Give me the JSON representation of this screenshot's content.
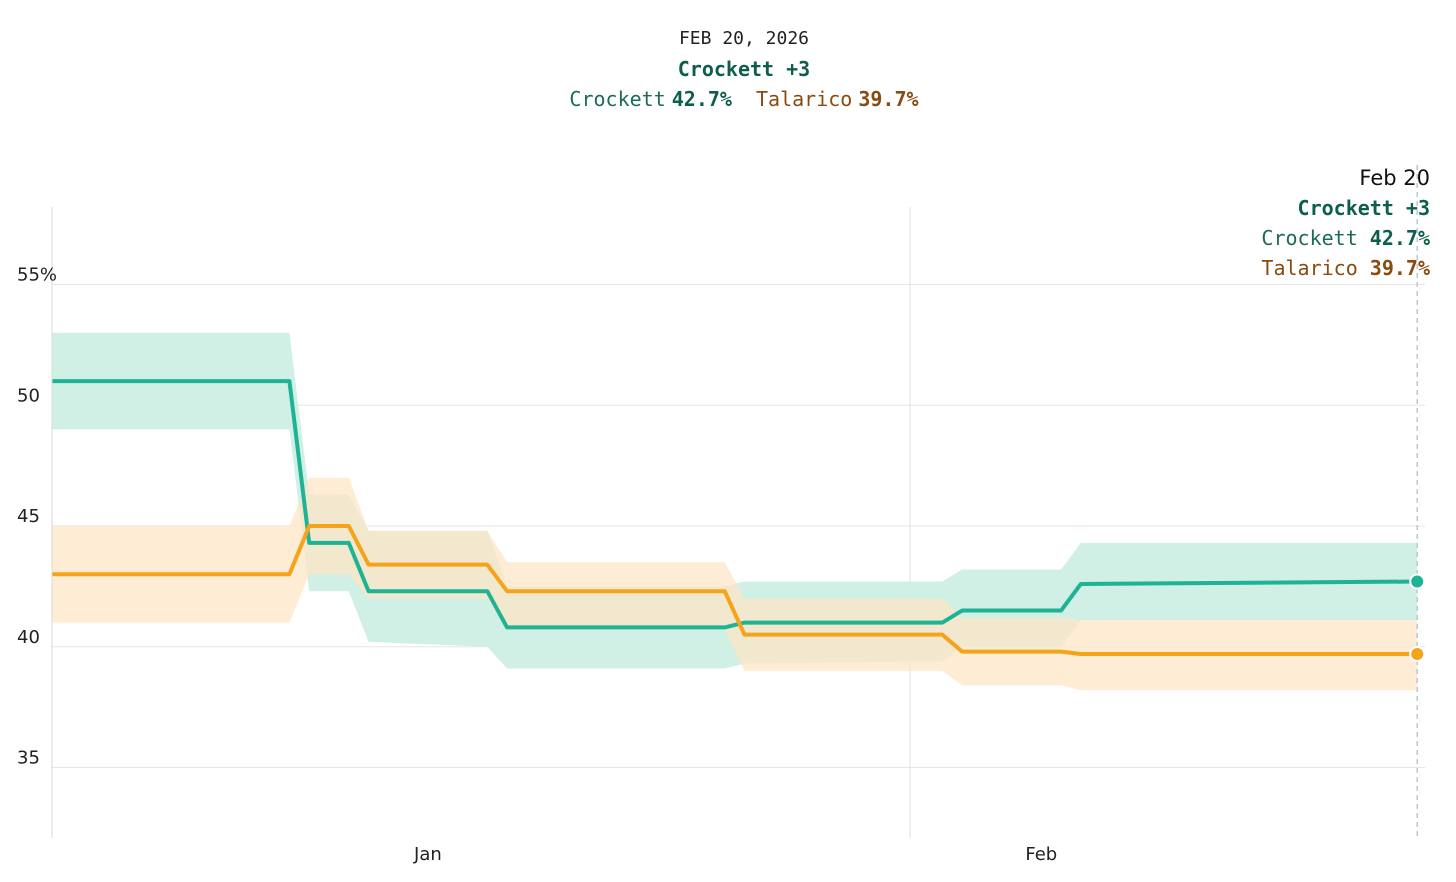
{
  "header": {
    "date": "FEB 20, 2026",
    "lead": "Crockett +3",
    "crockett_label": "Crockett",
    "crockett_value": "42.7%",
    "talarico_label": "Talarico",
    "talarico_value": "39.7%"
  },
  "tooltip": {
    "date": "Feb 20",
    "lead": "Crockett +3",
    "crockett_label": "Crockett",
    "crockett_value": "42.7%",
    "talarico_label": "Talarico",
    "talarico_value": "39.7%"
  },
  "colors": {
    "crockett_line": "#1db394",
    "crockett_band": "#cdeee4",
    "talarico_line": "#f5a31a",
    "talarico_band": "#fde6c6",
    "grid": "#e6e6e6"
  },
  "chart_data": {
    "type": "line",
    "ylim": [
      32,
      58
    ],
    "y_ticks": [
      {
        "value": 55,
        "label": "55%"
      },
      {
        "value": 50,
        "label": "50"
      },
      {
        "value": 45,
        "label": "45"
      },
      {
        "value": 40,
        "label": "40"
      },
      {
        "value": 35,
        "label": "35"
      }
    ],
    "x_ticks": [
      {
        "date": "2026-01-01",
        "label": "Jan"
      },
      {
        "date": "2026-02-01",
        "label": "Feb"
      }
    ],
    "xlim": [
      "2025-12-13",
      "2026-02-21"
    ],
    "series": [
      {
        "name": "Crockett",
        "points": [
          {
            "date": "2025-12-13",
            "value": 51.0,
            "low": 49.0,
            "high": 53.0
          },
          {
            "date": "2025-12-25",
            "value": 51.0,
            "low": 49.0,
            "high": 53.0
          },
          {
            "date": "2025-12-26",
            "value": 44.3,
            "low": 42.3,
            "high": 46.3
          },
          {
            "date": "2025-12-28",
            "value": 44.3,
            "low": 42.3,
            "high": 46.3
          },
          {
            "date": "2025-12-29",
            "value": 42.3,
            "low": 40.2,
            "high": 44.8
          },
          {
            "date": "2026-01-04",
            "value": 42.3,
            "low": 40.0,
            "high": 44.8
          },
          {
            "date": "2026-01-05",
            "value": 40.8,
            "low": 39.1,
            "high": 42.5
          },
          {
            "date": "2026-01-16",
            "value": 40.8,
            "low": 39.1,
            "high": 42.5
          },
          {
            "date": "2026-01-17",
            "value": 41.0,
            "low": 39.3,
            "high": 42.7
          },
          {
            "date": "2026-01-27",
            "value": 41.0,
            "low": 39.4,
            "high": 42.7
          },
          {
            "date": "2026-01-28",
            "value": 41.5,
            "low": 40.0,
            "high": 43.2
          },
          {
            "date": "2026-02-02",
            "value": 41.5,
            "low": 40.0,
            "high": 43.2
          },
          {
            "date": "2026-02-03",
            "value": 42.6,
            "low": 41.1,
            "high": 44.3
          },
          {
            "date": "2026-02-20",
            "value": 42.7,
            "low": 41.1,
            "high": 44.3
          }
        ]
      },
      {
        "name": "Talarico",
        "points": [
          {
            "date": "2025-12-13",
            "value": 43.0,
            "low": 41.0,
            "high": 45.0
          },
          {
            "date": "2025-12-25",
            "value": 43.0,
            "low": 41.0,
            "high": 45.0
          },
          {
            "date": "2025-12-26",
            "value": 45.0,
            "low": 43.0,
            "high": 47.0
          },
          {
            "date": "2025-12-28",
            "value": 45.0,
            "low": 43.0,
            "high": 47.0
          },
          {
            "date": "2025-12-29",
            "value": 43.4,
            "low": 42.0,
            "high": 44.8
          },
          {
            "date": "2026-01-04",
            "value": 43.4,
            "low": 42.0,
            "high": 44.8
          },
          {
            "date": "2026-01-05",
            "value": 42.3,
            "low": 40.7,
            "high": 43.5
          },
          {
            "date": "2026-01-16",
            "value": 42.3,
            "low": 40.7,
            "high": 43.5
          },
          {
            "date": "2026-01-17",
            "value": 40.5,
            "low": 39.0,
            "high": 42.0
          },
          {
            "date": "2026-01-27",
            "value": 40.5,
            "low": 39.0,
            "high": 42.0
          },
          {
            "date": "2026-01-28",
            "value": 39.8,
            "low": 38.4,
            "high": 41.2
          },
          {
            "date": "2026-02-02",
            "value": 39.8,
            "low": 38.4,
            "high": 41.2
          },
          {
            "date": "2026-02-03",
            "value": 39.7,
            "low": 38.2,
            "high": 41.1
          },
          {
            "date": "2026-02-20",
            "value": 39.7,
            "low": 38.2,
            "high": 41.1
          }
        ]
      }
    ]
  }
}
